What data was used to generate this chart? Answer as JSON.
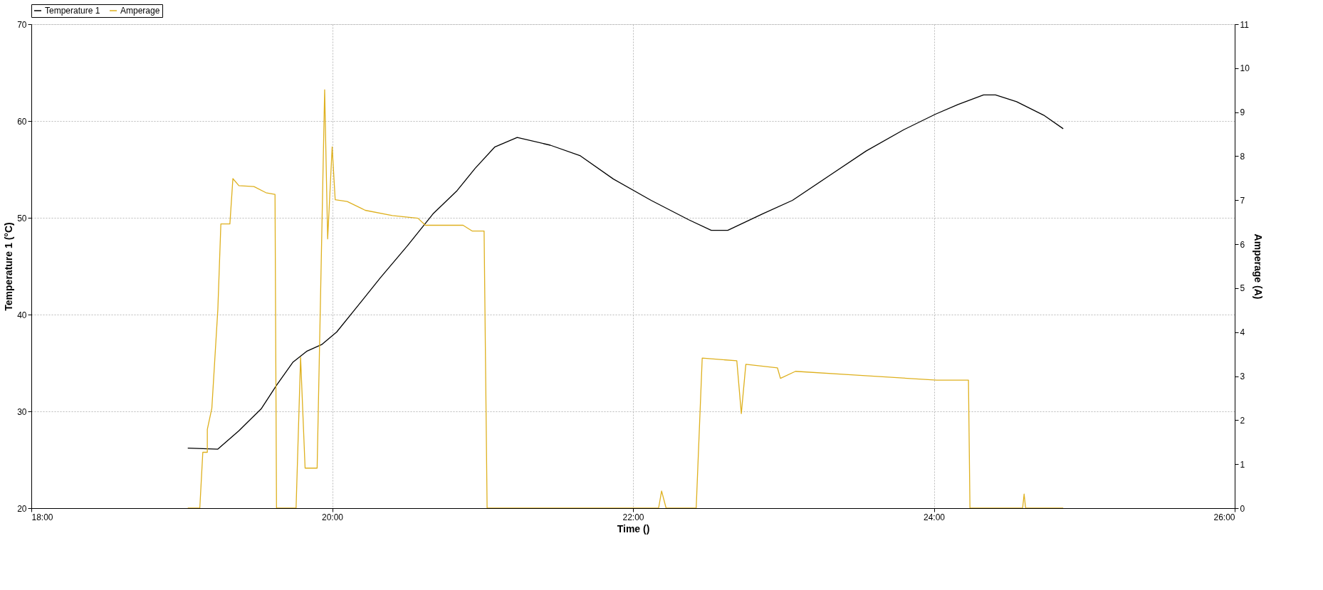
{
  "chart_data": {
    "type": "line",
    "xlabel": "Time ()",
    "ylabel": "Temperature 1 (°C)",
    "y2label": "Amperage (A)",
    "xlim": [
      18,
      26
    ],
    "xticks": [
      {
        "value": 18,
        "label": "18:00"
      },
      {
        "value": 20,
        "label": "20:00"
      },
      {
        "value": 22,
        "label": "22:00"
      },
      {
        "value": 24,
        "label": "24:00"
      },
      {
        "value": 26,
        "label": "26:00"
      }
    ],
    "ylim": [
      20,
      70
    ],
    "yticks": [
      20,
      30,
      40,
      50,
      60,
      70
    ],
    "y2lim": [
      0,
      11
    ],
    "y2ticks": [
      0,
      1,
      2,
      3,
      4,
      5,
      6,
      7,
      8,
      9,
      10,
      11
    ],
    "grid": true,
    "legend": "top left",
    "marker": "none",
    "line_style": "solid",
    "series": [
      {
        "name": "Temperature 1",
        "color": "#000000",
        "x": [
          19.04,
          19.24,
          19.38,
          19.53,
          19.63,
          19.74,
          19.83,
          19.93,
          20.03,
          20.15,
          20.32,
          20.5,
          20.67,
          20.83,
          20.95,
          21.08,
          21.23,
          21.45,
          21.65,
          21.87,
          22.12,
          22.37,
          22.52,
          22.63,
          22.86,
          23.06,
          23.3,
          23.55,
          23.8,
          24.01,
          24.16,
          24.33,
          24.41,
          24.55,
          24.73,
          24.86
        ],
        "values": [
          26.2,
          26.1,
          28.0,
          30.3,
          32.7,
          35.1,
          36.2,
          36.9,
          38.2,
          40.5,
          43.8,
          47.1,
          50.4,
          52.8,
          55.1,
          57.3,
          58.3,
          57.5,
          56.4,
          54.0,
          51.8,
          49.8,
          48.7,
          48.7,
          50.4,
          51.8,
          54.3,
          56.9,
          59.1,
          60.7,
          61.7,
          62.7,
          62.7,
          62.0,
          60.6,
          59.2
        ]
      },
      {
        "name": "Amperage",
        "color": "#deb01e",
        "axis": "y2",
        "x": [
          19.04,
          19.12,
          19.14,
          19.17,
          19.17,
          19.2,
          19.24,
          19.26,
          19.32,
          19.34,
          19.38,
          19.48,
          19.56,
          19.62,
          19.63,
          19.76,
          19.79,
          19.82,
          19.9,
          19.95,
          19.97,
          20.0,
          20.02,
          20.1,
          20.22,
          20.4,
          20.57,
          20.62,
          20.87,
          20.93,
          21.01,
          21.03,
          22.17,
          22.19,
          22.22,
          22.42,
          22.46,
          22.69,
          22.72,
          22.75,
          22.96,
          22.98,
          23.08,
          23.45,
          24.02,
          24.23,
          24.24,
          24.59,
          24.6,
          24.61,
          24.86
        ],
        "values": [
          0,
          0,
          1.27,
          1.27,
          1.79,
          2.27,
          4.52,
          6.46,
          6.46,
          7.49,
          7.33,
          7.31,
          7.17,
          7.13,
          0,
          0,
          3.43,
          0.91,
          0.91,
          9.51,
          6.12,
          8.21,
          7.01,
          6.97,
          6.77,
          6.65,
          6.59,
          6.43,
          6.43,
          6.3,
          6.3,
          0,
          0,
          0.39,
          0,
          0,
          3.41,
          3.35,
          2.15,
          3.27,
          3.19,
          2.95,
          3.11,
          3.03,
          2.91,
          2.91,
          0,
          0,
          0.32,
          0,
          0
        ]
      }
    ]
  }
}
